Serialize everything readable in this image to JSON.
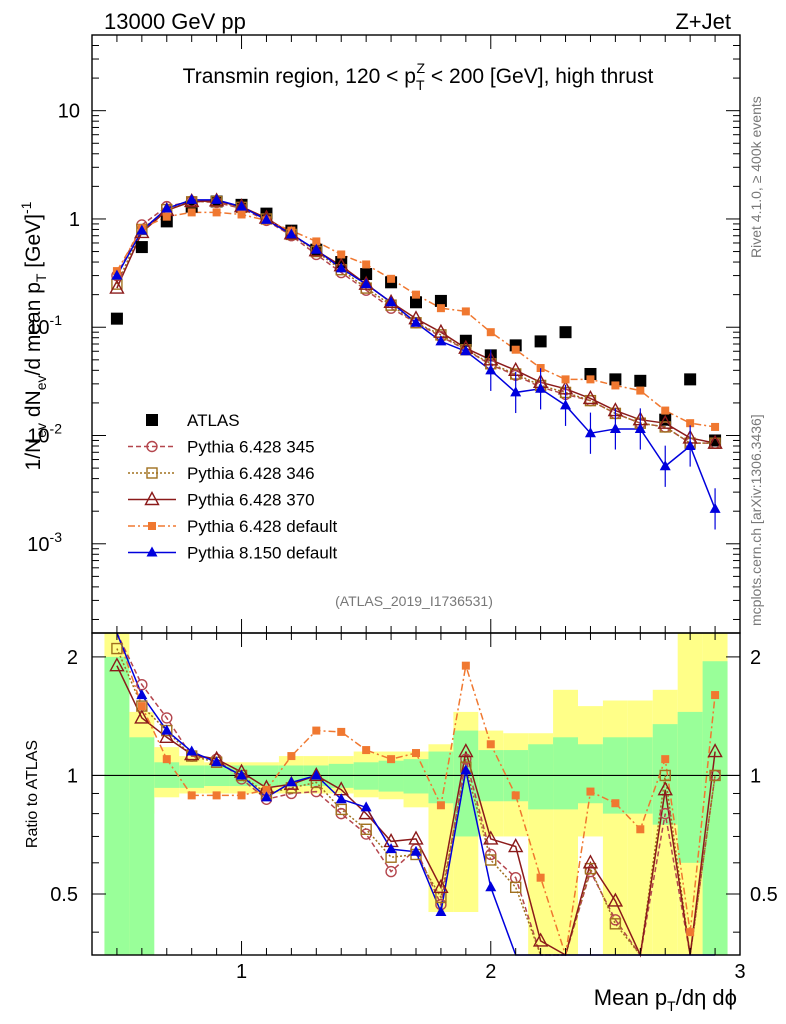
{
  "header": {
    "left": "13000 GeV pp",
    "right": "Z+Jet"
  },
  "side": {
    "rivet": "Rivet 4.1.0, ≥ 400k events",
    "mcplots": "mcplots.cern.ch [arXiv:1306.3436]"
  },
  "chart_data": {
    "type": "line",
    "title": "Transmin region, 120 < p_T^Z < 200 [GeV], high thrust",
    "analysis_id": "(ATLAS_2019_I1736531)",
    "xlabel": "Mean p_T/dη dϕ",
    "ylabel": "1/N_ev dN_ev/d mean p_T [GeV]^-1",
    "ratio_ylabel": "Ratio to ATLAS",
    "xlim": [
      0.4,
      3.0
    ],
    "ylim_log": [
      0.00015,
      50
    ],
    "ratio_ylim": [
      0.35,
      2.3
    ],
    "x_ticks": [
      "1",
      "2",
      "3"
    ],
    "y_ticks": [
      "10^-3",
      "10^-2",
      "10^-1",
      "1",
      "10"
    ],
    "ratio_ticks": [
      "0.5",
      "1",
      "2"
    ],
    "x": [
      0.5,
      0.6,
      0.7,
      0.8,
      0.9,
      1.0,
      1.1,
      1.2,
      1.3,
      1.4,
      1.5,
      1.6,
      1.7,
      1.8,
      1.9,
      2.0,
      2.1,
      2.2,
      2.3,
      2.4,
      2.5,
      2.6,
      2.7,
      2.8,
      2.9
    ],
    "atlas": [
      0.12,
      0.55,
      0.95,
      1.3,
      1.45,
      1.35,
      1.12,
      0.78,
      0.52,
      0.4,
      0.31,
      0.26,
      0.17,
      0.175,
      0.075,
      0.055,
      0.068,
      0.074,
      0.09,
      0.037,
      0.033,
      0.032,
      0.014,
      0.033,
      0.009
    ],
    "band_yellow": [
      [
        0.35,
        2.3
      ],
      [
        0.8,
        1.45
      ],
      [
        0.88,
        1.18
      ],
      [
        0.9,
        1.12
      ],
      [
        0.9,
        1.08
      ],
      [
        0.9,
        1.08
      ],
      [
        0.9,
        1.08
      ],
      [
        0.9,
        1.12
      ],
      [
        0.9,
        1.12
      ],
      [
        0.9,
        1.12
      ],
      [
        0.88,
        1.15
      ],
      [
        0.87,
        1.15
      ],
      [
        0.83,
        1.15
      ],
      [
        0.45,
        1.2
      ],
      [
        0.45,
        1.45
      ],
      [
        0.7,
        1.3
      ],
      [
        0.7,
        1.28
      ],
      [
        0.35,
        1.28
      ],
      [
        0.35,
        1.65
      ],
      [
        0.7,
        1.5
      ],
      [
        0.35,
        1.55
      ],
      [
        0.35,
        1.55
      ],
      [
        0.35,
        1.65
      ],
      [
        0.35,
        2.3
      ],
      [
        0.35,
        2.3
      ]
    ],
    "band_green": [
      [
        0.35,
        2.0
      ],
      [
        0.35,
        1.25
      ],
      [
        0.93,
        1.08
      ],
      [
        0.93,
        1.06
      ],
      [
        0.94,
        1.06
      ],
      [
        0.94,
        1.06
      ],
      [
        0.94,
        1.06
      ],
      [
        0.94,
        1.06
      ],
      [
        0.94,
        1.06
      ],
      [
        0.93,
        1.07
      ],
      [
        0.92,
        1.08
      ],
      [
        0.91,
        1.09
      ],
      [
        0.9,
        1.1
      ],
      [
        0.85,
        1.15
      ],
      [
        0.7,
        1.3
      ],
      [
        0.86,
        1.16
      ],
      [
        0.86,
        1.16
      ],
      [
        0.82,
        1.2
      ],
      [
        0.82,
        1.25
      ],
      [
        0.85,
        1.2
      ],
      [
        0.8,
        1.25
      ],
      [
        0.8,
        1.25
      ],
      [
        0.75,
        1.35
      ],
      [
        0.6,
        1.45
      ],
      [
        0.35,
        1.95
      ]
    ],
    "series": [
      {
        "name": "ATLAS",
        "color": "#000000",
        "marker": "square",
        "values": [
          0.12,
          0.55,
          0.95,
          1.3,
          1.45,
          1.35,
          1.12,
          0.78,
          0.52,
          0.4,
          0.31,
          0.26,
          0.17,
          0.175,
          0.075,
          0.055,
          0.068,
          0.074,
          0.09,
          0.037,
          0.033,
          0.032,
          0.014,
          0.033,
          0.009
        ]
      },
      {
        "name": "Pythia 6.428 345",
        "color": "#B4464D",
        "marker": "circle-open",
        "dash": "5,3",
        "values": [
          0.3,
          0.88,
          1.3,
          1.46,
          1.42,
          1.25,
          0.97,
          0.7,
          0.47,
          0.32,
          0.22,
          0.15,
          0.11,
          0.082,
          0.062,
          0.045,
          0.036,
          0.028,
          0.024,
          0.021,
          0.016,
          0.013,
          0.012,
          0.0085,
          0.0085
        ],
        "ratio": [
          2.4,
          1.7,
          1.4,
          1.12,
          1.1,
          0.98,
          0.87,
          0.9,
          0.91,
          0.8,
          0.71,
          0.57,
          0.65,
          0.47,
          1.1,
          0.63,
          0.55,
          0.3,
          0.28,
          0.57,
          0.43,
          0.25,
          0.8,
          0.25,
          1.0
        ]
      },
      {
        "name": "Pythia 6.428 346",
        "color": "#A0701E",
        "marker": "square-open",
        "dash": "2,2",
        "values": [
          0.25,
          0.8,
          1.22,
          1.44,
          1.45,
          1.28,
          1.0,
          0.72,
          0.5,
          0.34,
          0.23,
          0.16,
          0.11,
          0.085,
          0.062,
          0.046,
          0.037,
          0.029,
          0.025,
          0.021,
          0.016,
          0.013,
          0.012,
          0.0085,
          0.0085
        ],
        "ratio": [
          2.1,
          1.5,
          1.3,
          1.12,
          1.08,
          1.0,
          0.9,
          0.93,
          0.96,
          0.82,
          0.73,
          0.62,
          0.63,
          0.49,
          1.05,
          0.61,
          0.52,
          0.31,
          0.26,
          0.58,
          0.42,
          0.24,
          1.0,
          0.25,
          1.0
        ]
      },
      {
        "name": "Pythia 6.428 370",
        "color": "#8B1A1A",
        "marker": "triangle-open",
        "dash": "",
        "values": [
          0.23,
          0.75,
          1.2,
          1.45,
          1.47,
          1.3,
          1.02,
          0.73,
          0.51,
          0.37,
          0.25,
          0.17,
          0.12,
          0.09,
          0.064,
          0.05,
          0.04,
          0.031,
          0.027,
          0.022,
          0.017,
          0.014,
          0.013,
          0.0095,
          0.0085
        ],
        "ratio": [
          1.9,
          1.4,
          1.25,
          1.13,
          1.1,
          1.02,
          0.93,
          0.95,
          1.0,
          0.92,
          0.8,
          0.68,
          0.69,
          0.52,
          1.15,
          0.69,
          0.66,
          0.38,
          0.3,
          0.6,
          0.48,
          0.25,
          0.92,
          0.25,
          1.15
        ]
      },
      {
        "name": "Pythia 6.428 default",
        "color": "#F07830",
        "marker": "square-small",
        "dash": "7,3,2,3",
        "values": [
          0.33,
          0.82,
          1.05,
          1.15,
          1.15,
          1.1,
          0.97,
          0.78,
          0.62,
          0.47,
          0.38,
          0.28,
          0.2,
          0.15,
          0.14,
          0.09,
          0.062,
          0.042,
          0.033,
          0.033,
          0.029,
          0.026,
          0.017,
          0.013,
          0.012
        ],
        "ratio": [
          2.7,
          1.5,
          1.1,
          0.89,
          0.89,
          0.89,
          0.92,
          1.12,
          1.3,
          1.29,
          1.16,
          1.1,
          1.14,
          0.84,
          1.9,
          1.2,
          0.89,
          0.55,
          0.35,
          0.91,
          0.85,
          0.73,
          1.1,
          0.4,
          1.6
        ]
      },
      {
        "name": "Pythia 8.150 default",
        "color": "#0000DD",
        "marker": "triangle",
        "dash": "",
        "values": [
          0.3,
          0.78,
          1.25,
          1.5,
          1.5,
          1.3,
          0.98,
          0.72,
          0.52,
          0.35,
          0.25,
          0.17,
          0.11,
          0.074,
          0.06,
          0.04,
          0.025,
          0.027,
          0.019,
          0.0105,
          0.0115,
          0.0115,
          0.0052,
          0.008,
          0.0021
        ],
        "ratio": [
          2.5,
          1.6,
          1.3,
          1.15,
          1.08,
          1.0,
          0.88,
          0.96,
          1.0,
          0.87,
          0.83,
          0.65,
          0.64,
          0.45,
          1.03,
          0.52,
          0.3,
          0.3,
          0.3,
          0.3,
          0.3,
          0.3,
          0.3,
          0.3,
          0.3
        ]
      }
    ]
  }
}
